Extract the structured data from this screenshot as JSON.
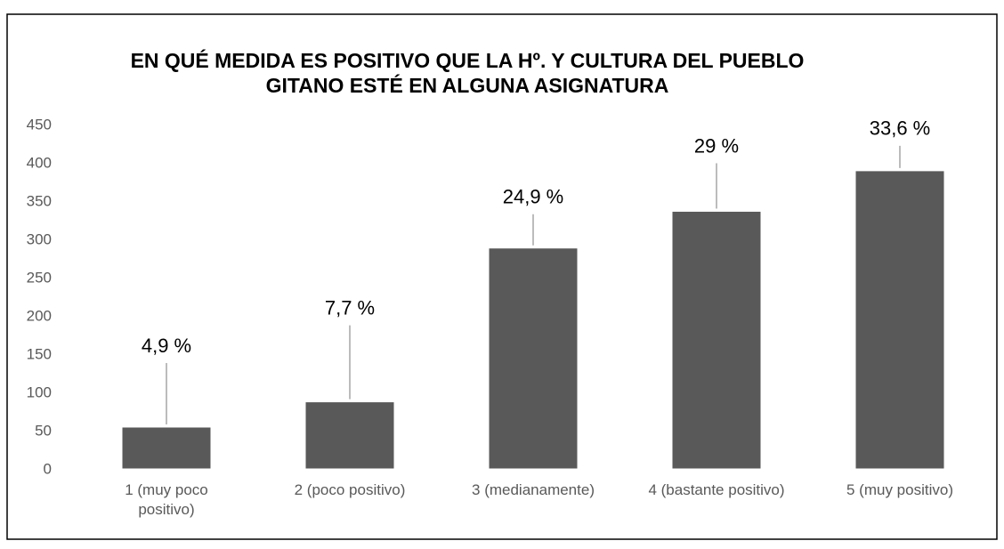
{
  "chart_data": {
    "type": "bar",
    "title": "EN QUÉ MEDIDA ES POSITIVO QUE LA Hº. Y CULTURA DEL PUEBLO GITANO ESTÉ EN ALGUNA ASIGNATURA",
    "categories": [
      "1 (muy poco positivo)",
      "2 (poco positivo)",
      "3 (medianamente)",
      "4 (bastante positivo)",
      "5 (muy positivo)"
    ],
    "values": [
      57,
      90,
      291,
      339,
      392
    ],
    "annotations": [
      "4,9 %",
      "7,7 %",
      "24,9 %",
      "29 %",
      "33,6 %"
    ],
    "color": "#595959",
    "ylim": [
      0,
      450
    ],
    "yticks": [
      0,
      50,
      100,
      150,
      200,
      250,
      300,
      350,
      400,
      450
    ],
    "grid": false
  }
}
